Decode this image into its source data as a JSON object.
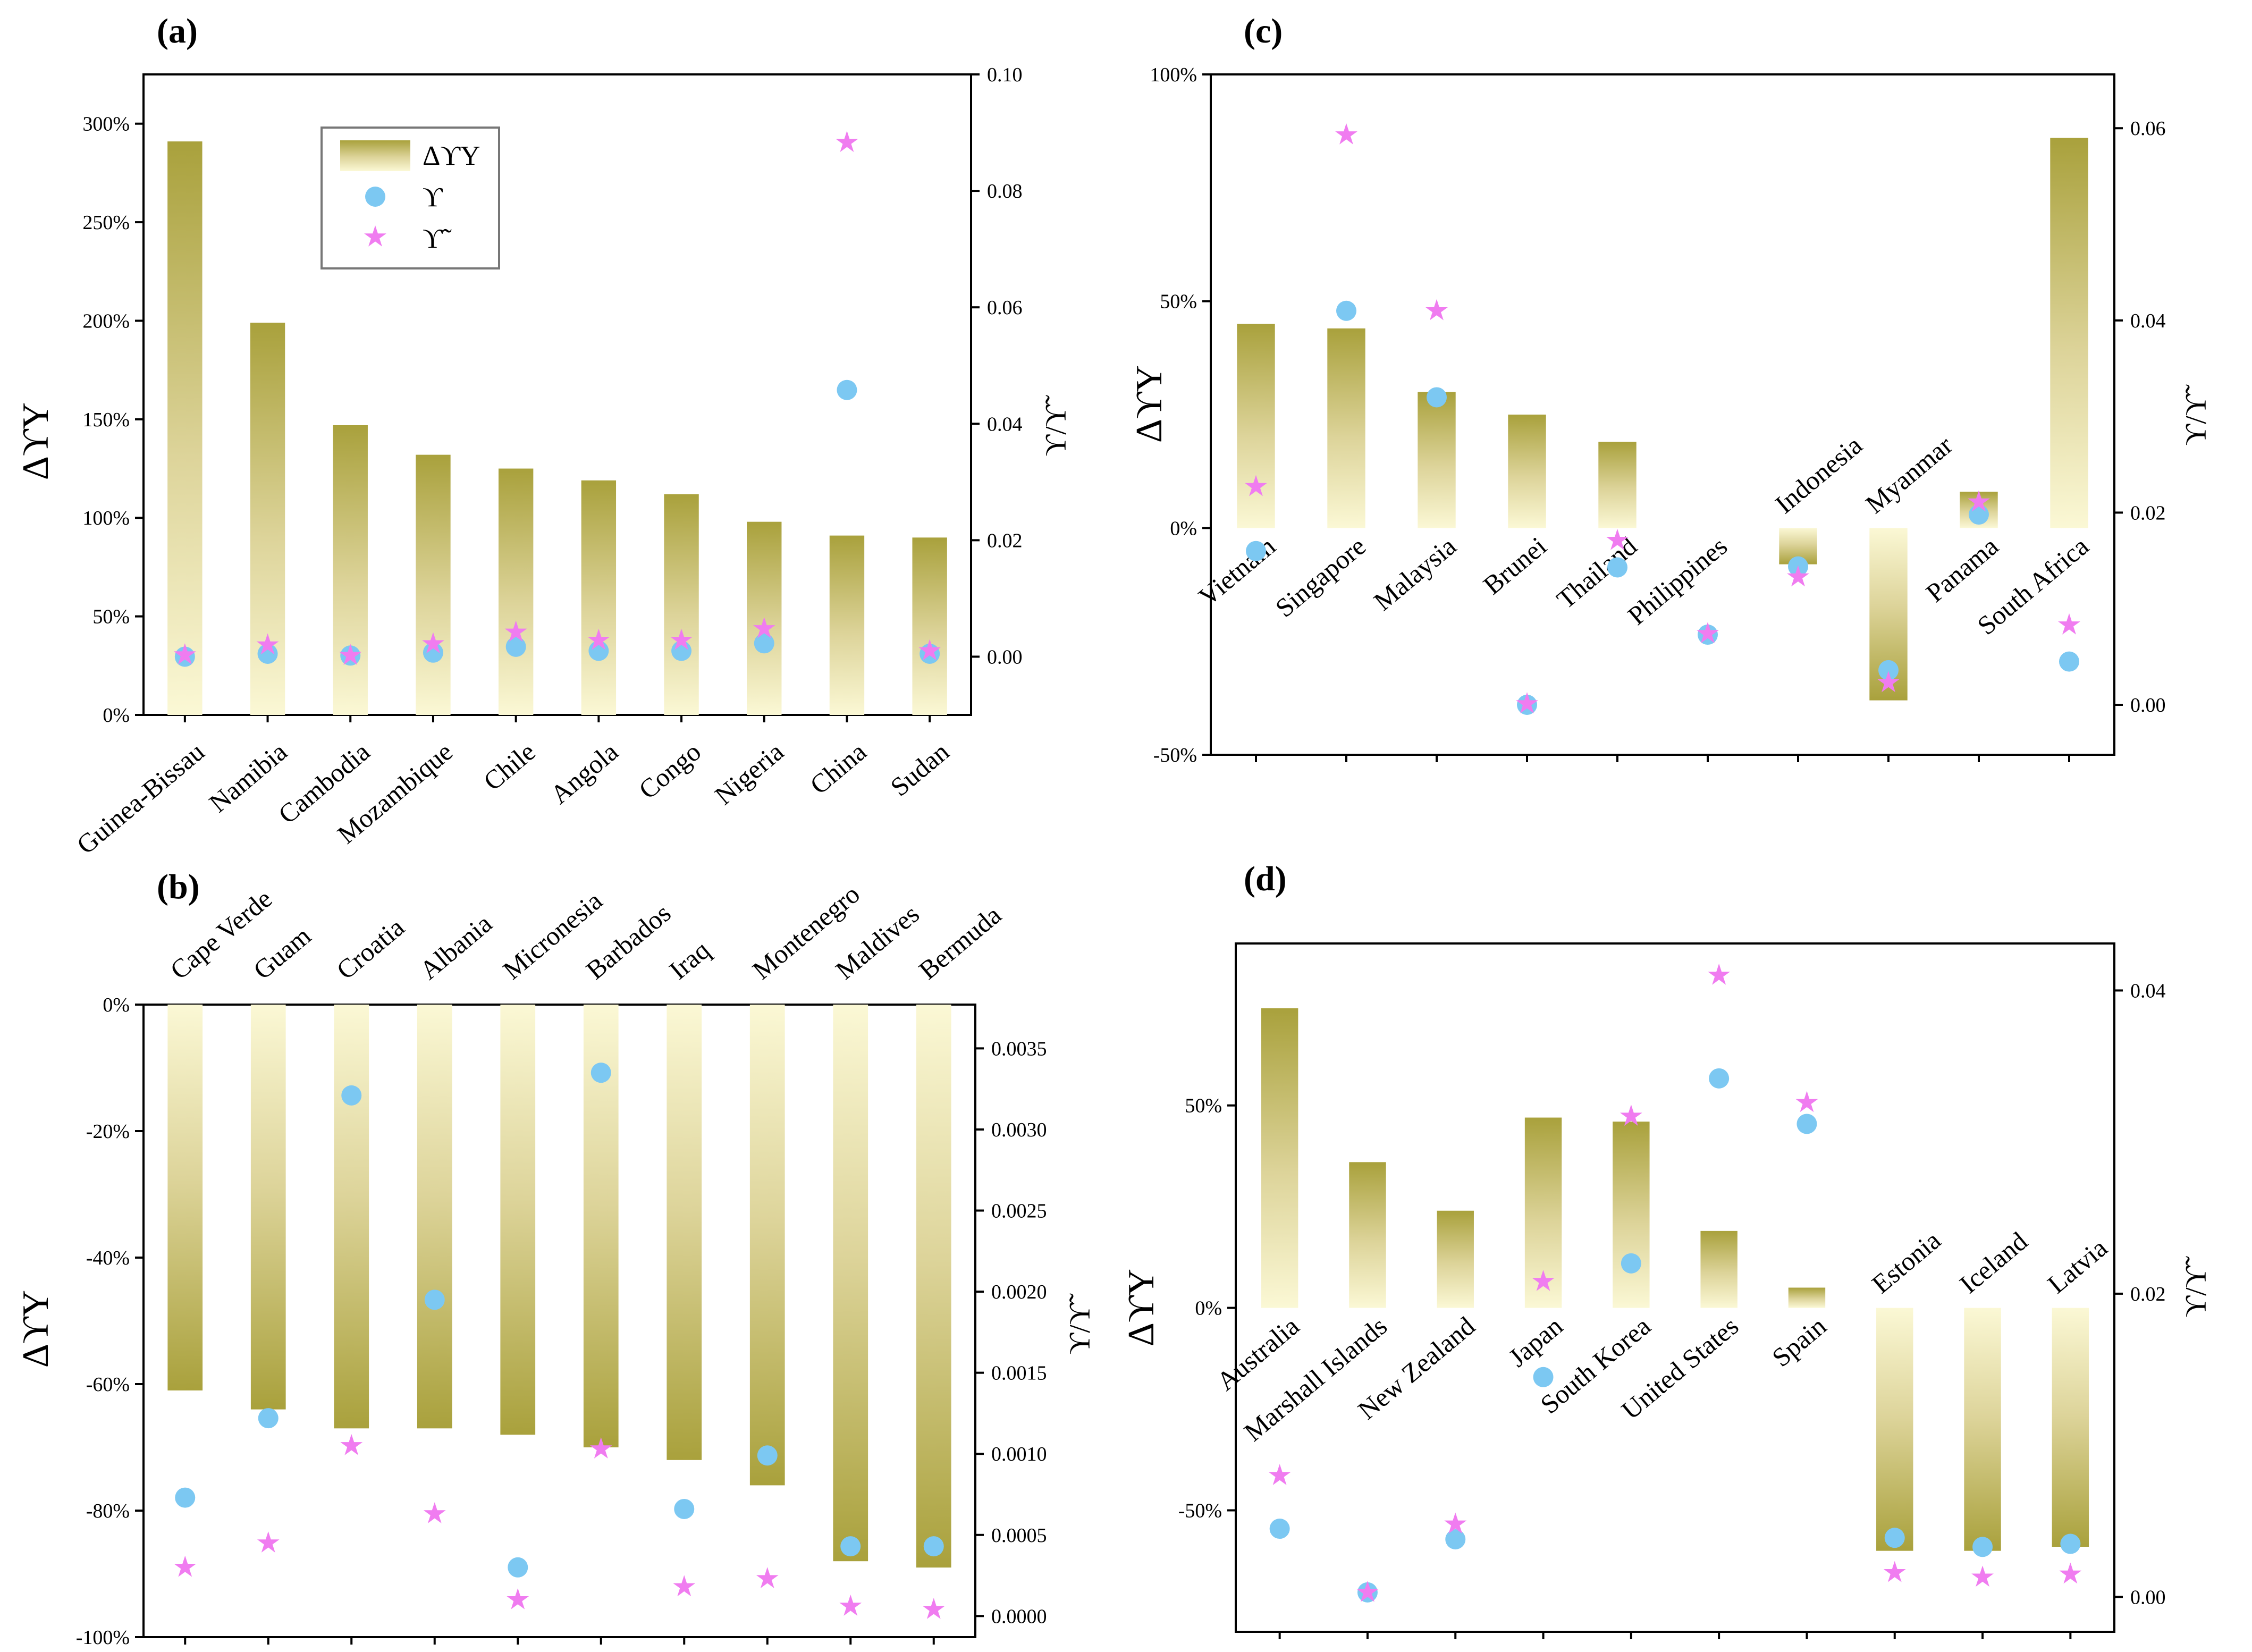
{
  "figure": {
    "legend": {
      "bar_label": "ΔϒΥ",
      "circle_label": "ϒ",
      "star_label": "ϒ̃"
    },
    "colors": {
      "bar_dark": "#a9a13c",
      "bar_light": "#fbf8d5",
      "circle": "#7cc8f2",
      "star": "#f07cf0",
      "axis": "#000000"
    }
  },
  "chart_data": [
    {
      "panel": "(a)",
      "type": "bar",
      "categories": [
        "Guinea-Bissau",
        "Namibia",
        "Cambodia",
        "Mozambique",
        "Chile",
        "Angola",
        "Congo",
        "Nigeria",
        "China",
        "Sudan"
      ],
      "ylabel": "ΔϒΥ",
      "y2label": "ϒ/ϒ̃",
      "ylim": [
        0,
        325
      ],
      "y2lim": [
        -0.01,
        0.1
      ],
      "yticks": [
        0,
        50,
        100,
        150,
        200,
        250,
        300
      ],
      "ytick_labels": [
        "0%",
        "50%",
        "100%",
        "150%",
        "200%",
        "250%",
        "300%"
      ],
      "y2ticks": [
        0.0,
        0.02,
        0.04,
        0.06,
        0.08,
        0.1
      ],
      "y2tick_labels": [
        "0.00",
        "0.02",
        "0.04",
        "0.06",
        "0.08",
        "0.10"
      ],
      "series": [
        {
          "name": "ΔϒΥ",
          "axis": "left",
          "values": [
            291,
            199,
            147,
            132,
            125,
            119,
            112,
            98,
            91,
            90
          ]
        },
        {
          "name": "ϒ",
          "axis": "right",
          "values": [
            0.0,
            0.0005,
            0.0002,
            0.0007,
            0.0017,
            0.001,
            0.001,
            0.0023,
            0.0458,
            0.0005
          ]
        },
        {
          "name": "ϒ̃",
          "axis": "right",
          "values": [
            0.0003,
            0.002,
            0.0002,
            0.0022,
            0.0042,
            0.0028,
            0.0028,
            0.0048,
            0.0883,
            0.001
          ]
        }
      ]
    },
    {
      "panel": "(b)",
      "type": "bar",
      "categories": [
        "Cape Verde",
        "Guam",
        "Croatia",
        "Albania",
        "Micronesia",
        "Barbados",
        "Iraq",
        "Montenegro",
        "Maldives",
        "Bermuda"
      ],
      "ylabel": "ΔϒΥ",
      "y2label": "ϒ/ϒ̃",
      "ylim": [
        -100,
        0
      ],
      "y2lim": [
        -0.00013,
        0.00377
      ],
      "yticks": [
        -100,
        -80,
        -60,
        -40,
        -20,
        0
      ],
      "ytick_labels": [
        "-100%",
        "-80%",
        "-60%",
        "-40%",
        "-20%",
        "0%"
      ],
      "y2ticks": [
        0.0,
        0.0005,
        0.001,
        0.0015,
        0.002,
        0.0025,
        0.003,
        0.0035
      ],
      "y2tick_labels": [
        "0.0000",
        "0.0005",
        "0.0010",
        "0.0015",
        "0.0020",
        "0.0025",
        "0.0030",
        "0.0035"
      ],
      "series": [
        {
          "name": "ΔϒΥ",
          "axis": "left",
          "values": [
            -61,
            -64,
            -67,
            -67,
            -68,
            -70,
            -72,
            -76,
            -88,
            -89
          ]
        },
        {
          "name": "ϒ",
          "axis": "right",
          "values": [
            0.00073,
            0.00122,
            0.00321,
            0.00195,
            0.0003,
            0.00335,
            0.00066,
            0.00099,
            0.00043,
            0.00043
          ]
        },
        {
          "name": "ϒ̃",
          "axis": "right",
          "values": [
            0.0003,
            0.00045,
            0.00105,
            0.00063,
            0.0001,
            0.00103,
            0.00018,
            0.00023,
            6e-05,
            4e-05
          ]
        }
      ]
    },
    {
      "panel": "(c)",
      "type": "bar",
      "categories": [
        "Vietnam",
        "Singapore",
        "Malaysia",
        "Brunei",
        "Thailand",
        "Philippines",
        "Indonesia",
        "Myanmar",
        "Panama",
        "South Africa"
      ],
      "ylabel": "ΔϒΥ",
      "y2label": "ϒ/ϒ̃",
      "ylim": [
        -50,
        100
      ],
      "y2lim": [
        -0.0052,
        0.0656
      ],
      "yticks": [
        -50,
        0,
        50,
        100
      ],
      "ytick_labels": [
        "-50%",
        "0%",
        "50%",
        "100%"
      ],
      "y2ticks": [
        0.0,
        0.02,
        0.04,
        0.06
      ],
      "y2tick_labels": [
        "0.00",
        "0.02",
        "0.04",
        "0.06"
      ],
      "series": [
        {
          "name": "ΔϒΥ",
          "axis": "left",
          "values": [
            45,
            44,
            30,
            25,
            19,
            0,
            -8,
            -38,
            8,
            86
          ]
        },
        {
          "name": "ϒ",
          "axis": "right",
          "values": [
            0.016,
            0.041,
            0.032,
            0.0,
            0.0143,
            0.0073,
            0.0144,
            0.0036,
            0.0198,
            0.0045
          ]
        },
        {
          "name": "ϒ̃",
          "axis": "right",
          "values": [
            0.0227,
            0.0593,
            0.041,
            0.0001,
            0.0171,
            0.0074,
            0.0133,
            0.0023,
            0.0211,
            0.0083
          ]
        }
      ]
    },
    {
      "panel": "(d)",
      "type": "bar",
      "categories": [
        "Australia",
        "Marshall Islands",
        "New Zealand",
        "Japan",
        "South Korea",
        "United States",
        "Spain",
        "Estonia",
        "Iceland",
        "Latvia"
      ],
      "ylabel": "ΔϒΥ",
      "y2label": "ϒ/ϒ̃",
      "ylim": [
        -80,
        90
      ],
      "y2lim": [
        -0.0023,
        0.0431
      ],
      "yticks": [
        -50,
        0,
        50
      ],
      "ytick_labels": [
        "-50%",
        "0%",
        "50%"
      ],
      "y2ticks": [
        0.0,
        0.02,
        0.04
      ],
      "y2tick_labels": [
        "0.00",
        "0.02",
        "0.04"
      ],
      "series": [
        {
          "name": "ΔϒΥ",
          "axis": "left",
          "values": [
            74,
            36,
            24,
            47,
            46,
            19,
            5,
            -60,
            -60,
            -59
          ]
        },
        {
          "name": "ϒ",
          "axis": "right",
          "values": [
            0.0045,
            0.0003,
            0.0038,
            0.0145,
            0.022,
            0.0342,
            0.0312,
            0.0039,
            0.0033,
            0.0035
          ]
        },
        {
          "name": "ϒ̃",
          "axis": "right",
          "values": [
            0.008,
            0.0003,
            0.0048,
            0.0208,
            0.0317,
            0.041,
            0.0326,
            0.0016,
            0.0013,
            0.0015
          ]
        }
      ]
    }
  ]
}
